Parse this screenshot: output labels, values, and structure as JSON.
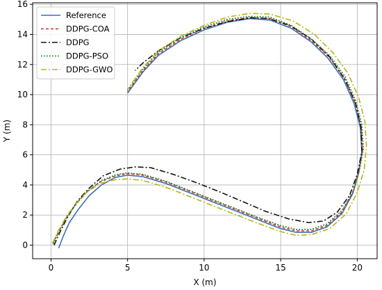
{
  "chart_data": {
    "type": "line",
    "title": "",
    "xlabel": "X (m)",
    "ylabel": "Y (m)",
    "xlim": [
      -1.2,
      21.3
    ],
    "ylim": [
      -0.9,
      16.1
    ],
    "xticks": [
      "0",
      "5",
      "10",
      "15",
      "20"
    ],
    "yticks": [
      "0",
      "2",
      "4",
      "6",
      "8",
      "10",
      "12",
      "14",
      "16"
    ],
    "grid": true,
    "legend": "top-left",
    "series": [
      {
        "name": "Reference",
        "color": "#3e6fb0",
        "dash": "solid",
        "points": [
          [
            0.5,
            -0.2
          ],
          [
            0.8,
            0.6
          ],
          [
            1.2,
            1.5
          ],
          [
            1.8,
            2.4
          ],
          [
            2.5,
            3.3
          ],
          [
            3.3,
            4.0
          ],
          [
            4.2,
            4.5
          ],
          [
            5.0,
            4.65
          ],
          [
            6.0,
            4.55
          ],
          [
            7.5,
            4.1
          ],
          [
            9.0,
            3.5
          ],
          [
            10.5,
            2.9
          ],
          [
            12.0,
            2.3
          ],
          [
            13.5,
            1.7
          ],
          [
            15.0,
            1.1
          ],
          [
            16.0,
            0.85
          ],
          [
            17.0,
            0.85
          ],
          [
            18.0,
            1.2
          ],
          [
            19.0,
            2.1
          ],
          [
            19.7,
            3.4
          ],
          [
            20.1,
            4.8
          ],
          [
            20.3,
            6.2
          ],
          [
            20.2,
            7.8
          ],
          [
            19.8,
            9.4
          ],
          [
            19.1,
            11.0
          ],
          [
            18.1,
            12.4
          ],
          [
            17.0,
            13.5
          ],
          [
            15.7,
            14.4
          ],
          [
            14.3,
            14.95
          ],
          [
            13.0,
            15.05
          ],
          [
            11.5,
            14.8
          ],
          [
            10.0,
            14.3
          ],
          [
            8.5,
            13.6
          ],
          [
            7.0,
            12.6
          ],
          [
            6.0,
            11.5
          ],
          [
            5.0,
            10.1
          ]
        ]
      },
      {
        "name": "DDPG-COA",
        "color": "#c0392b",
        "dash": "4,3",
        "points": [
          [
            0.1,
            0.1
          ],
          [
            0.5,
            0.9
          ],
          [
            1.0,
            1.8
          ],
          [
            1.6,
            2.7
          ],
          [
            2.3,
            3.5
          ],
          [
            3.2,
            4.2
          ],
          [
            4.2,
            4.6
          ],
          [
            5.0,
            4.75
          ],
          [
            6.0,
            4.65
          ],
          [
            7.5,
            4.2
          ],
          [
            9.0,
            3.6
          ],
          [
            10.5,
            3.0
          ],
          [
            12.0,
            2.4
          ],
          [
            13.5,
            1.8
          ],
          [
            15.0,
            1.2
          ],
          [
            16.0,
            0.95
          ],
          [
            17.0,
            0.95
          ],
          [
            18.0,
            1.3
          ],
          [
            19.0,
            2.2
          ],
          [
            19.7,
            3.5
          ],
          [
            20.1,
            4.9
          ],
          [
            20.35,
            6.3
          ],
          [
            20.25,
            7.9
          ],
          [
            19.85,
            9.5
          ],
          [
            19.15,
            11.1
          ],
          [
            18.15,
            12.5
          ],
          [
            17.0,
            13.6
          ],
          [
            15.7,
            14.5
          ],
          [
            14.3,
            15.05
          ],
          [
            13.0,
            15.12
          ],
          [
            11.5,
            14.9
          ],
          [
            10.0,
            14.4
          ],
          [
            8.5,
            13.7
          ],
          [
            7.0,
            12.7
          ],
          [
            6.0,
            11.6
          ],
          [
            5.0,
            10.2
          ]
        ]
      },
      {
        "name": "DDPG",
        "color": "#111111",
        "dash": "8,3,2,3",
        "points": [
          [
            0.2,
            0.0
          ],
          [
            0.6,
            0.9
          ],
          [
            1.1,
            1.9
          ],
          [
            1.7,
            2.9
          ],
          [
            2.5,
            3.8
          ],
          [
            3.4,
            4.6
          ],
          [
            4.5,
            5.05
          ],
          [
            5.5,
            5.2
          ],
          [
            6.5,
            5.15
          ],
          [
            8.0,
            4.7
          ],
          [
            9.5,
            4.15
          ],
          [
            11.0,
            3.55
          ],
          [
            12.5,
            2.9
          ],
          [
            14.0,
            2.25
          ],
          [
            15.5,
            1.75
          ],
          [
            16.8,
            1.5
          ],
          [
            17.8,
            1.6
          ],
          [
            18.7,
            2.2
          ],
          [
            19.5,
            3.3
          ],
          [
            20.0,
            4.7
          ],
          [
            20.3,
            6.2
          ],
          [
            20.25,
            7.8
          ],
          [
            19.9,
            9.4
          ],
          [
            19.2,
            11.0
          ],
          [
            18.2,
            12.5
          ],
          [
            17.0,
            13.7
          ],
          [
            15.6,
            14.6
          ],
          [
            14.2,
            15.05
          ],
          [
            13.0,
            15.1
          ],
          [
            11.5,
            14.85
          ],
          [
            10.0,
            14.4
          ],
          [
            8.5,
            13.8
          ],
          [
            7.0,
            12.9
          ],
          [
            6.0,
            12.1
          ],
          [
            5.5,
            11.6
          ]
        ]
      },
      {
        "name": "DDPG-PSO",
        "color": "#2e7d32",
        "dash": "2,2",
        "points": [
          [
            0.15,
            0.1
          ],
          [
            0.55,
            1.0
          ],
          [
            1.05,
            1.9
          ],
          [
            1.7,
            2.8
          ],
          [
            2.4,
            3.6
          ],
          [
            3.3,
            4.3
          ],
          [
            4.3,
            4.7
          ],
          [
            5.0,
            4.8
          ],
          [
            6.0,
            4.7
          ],
          [
            7.5,
            4.25
          ],
          [
            9.0,
            3.65
          ],
          [
            10.5,
            3.05
          ],
          [
            12.0,
            2.45
          ],
          [
            13.5,
            1.85
          ],
          [
            15.0,
            1.3
          ],
          [
            16.0,
            1.05
          ],
          [
            17.0,
            1.05
          ],
          [
            18.0,
            1.4
          ],
          [
            19.0,
            2.3
          ],
          [
            19.75,
            3.6
          ],
          [
            20.15,
            5.0
          ],
          [
            20.4,
            6.4
          ],
          [
            20.3,
            8.0
          ],
          [
            19.9,
            9.6
          ],
          [
            19.2,
            11.2
          ],
          [
            18.2,
            12.6
          ],
          [
            17.0,
            13.7
          ],
          [
            15.7,
            14.6
          ],
          [
            14.3,
            15.15
          ],
          [
            13.0,
            15.2
          ],
          [
            11.5,
            15.0
          ],
          [
            10.0,
            14.5
          ],
          [
            8.5,
            13.8
          ],
          [
            7.0,
            12.8
          ],
          [
            6.0,
            11.7
          ],
          [
            5.0,
            10.3
          ]
        ]
      },
      {
        "name": "DDPG-GWO",
        "color": "#b5b518",
        "dash": "8,3,2,3",
        "points": [
          [
            0.1,
            0.15
          ],
          [
            0.5,
            1.0
          ],
          [
            1.0,
            1.9
          ],
          [
            1.6,
            2.75
          ],
          [
            2.3,
            3.5
          ],
          [
            3.2,
            4.1
          ],
          [
            4.2,
            4.35
          ],
          [
            5.0,
            4.4
          ],
          [
            6.0,
            4.3
          ],
          [
            7.5,
            3.85
          ],
          [
            9.0,
            3.25
          ],
          [
            10.5,
            2.65
          ],
          [
            12.0,
            2.05
          ],
          [
            13.5,
            1.45
          ],
          [
            15.0,
            0.9
          ],
          [
            16.0,
            0.65
          ],
          [
            17.0,
            0.7
          ],
          [
            18.2,
            1.1
          ],
          [
            19.3,
            2.1
          ],
          [
            20.0,
            3.5
          ],
          [
            20.45,
            5.0
          ],
          [
            20.6,
            6.6
          ],
          [
            20.5,
            8.2
          ],
          [
            20.1,
            9.8
          ],
          [
            19.4,
            11.4
          ],
          [
            18.4,
            12.8
          ],
          [
            17.2,
            14.0
          ],
          [
            15.8,
            14.9
          ],
          [
            14.3,
            15.35
          ],
          [
            13.0,
            15.4
          ],
          [
            11.5,
            15.15
          ],
          [
            10.0,
            14.6
          ],
          [
            8.5,
            13.9
          ],
          [
            7.0,
            12.9
          ],
          [
            6.0,
            11.8
          ],
          [
            5.0,
            10.35
          ]
        ]
      }
    ]
  }
}
